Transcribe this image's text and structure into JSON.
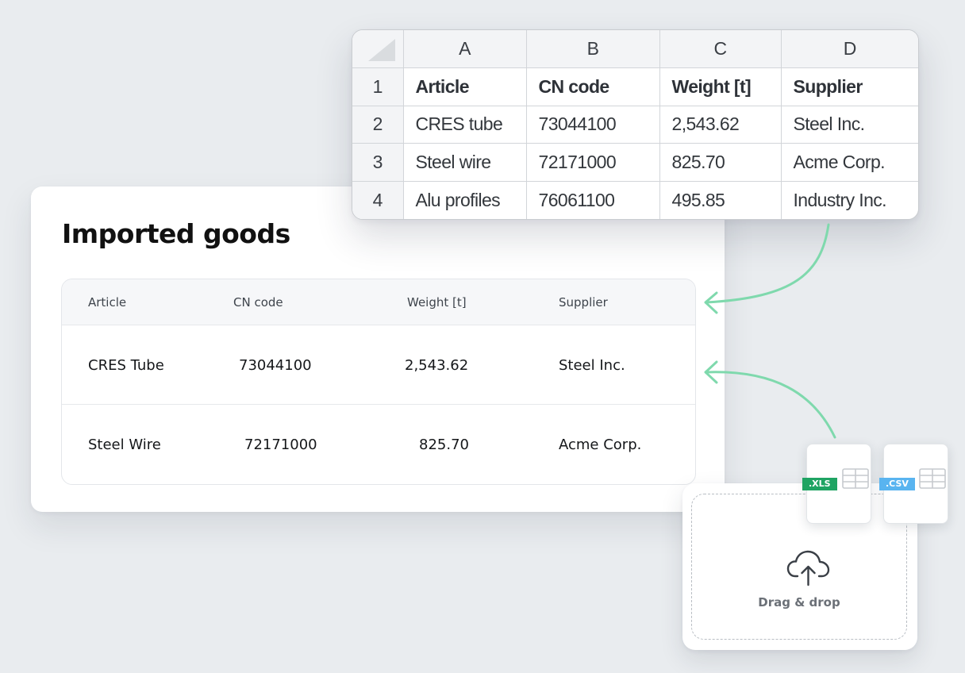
{
  "card": {
    "title": "Imported goods",
    "columns": [
      "Article",
      "CN code",
      "Weight [t]",
      "Supplier"
    ],
    "rows": [
      [
        "CRES Tube",
        "73044100",
        "2,543.62",
        "Steel Inc."
      ],
      [
        "Steel Wire",
        "72171000",
        "825.70",
        "Acme Corp."
      ]
    ]
  },
  "spreadsheet": {
    "column_letters": [
      "A",
      "B",
      "C",
      "D"
    ],
    "row_numbers": [
      "1",
      "2",
      "3",
      "4"
    ],
    "header": [
      "Article",
      "CN code",
      "Weight [t]",
      "Supplier"
    ],
    "rows": [
      [
        "CRES tube",
        "73044100",
        "2,543.62",
        "Steel Inc."
      ],
      [
        "Steel wire",
        "72171000",
        "825.70",
        "Acme Corp."
      ],
      [
        "Alu profiles",
        "76061100",
        "495.85",
        "Industry Inc."
      ]
    ]
  },
  "upload": {
    "label": "Drag & drop",
    "icon": "cloud-upload-icon",
    "files": [
      {
        "badge": ".XLS",
        "icon": "spreadsheet-icon",
        "color": "#1fa463"
      },
      {
        "badge": ".CSV",
        "icon": "spreadsheet-icon",
        "color": "#59b4f0"
      }
    ]
  },
  "colors": {
    "arrow": "#7fd9ad",
    "background": "#e9ecef"
  }
}
